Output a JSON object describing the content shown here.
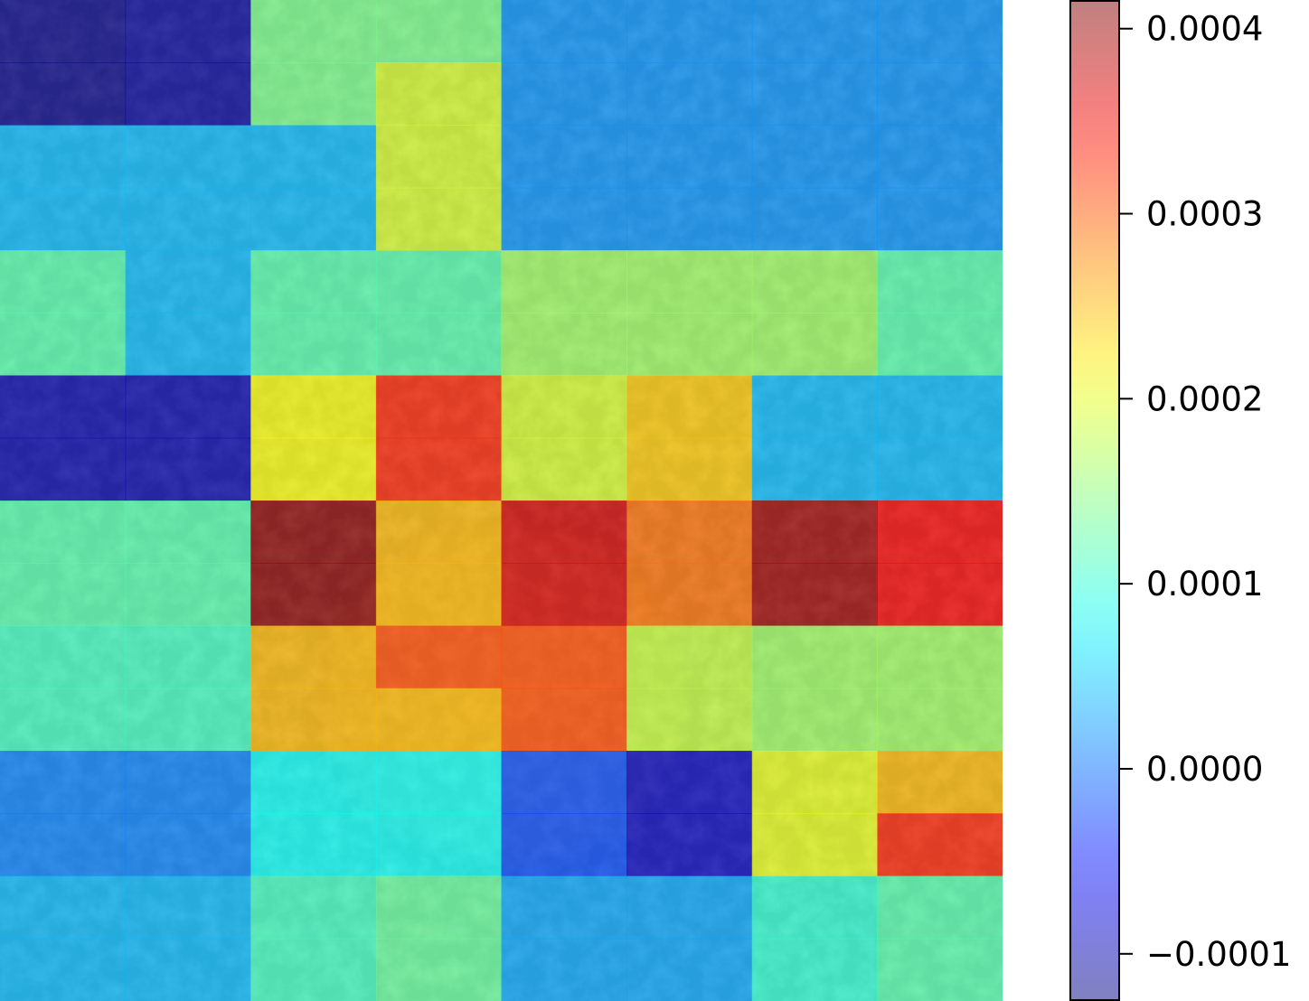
{
  "chart_data": {
    "type": "heatmap",
    "title": "",
    "xlabel": "",
    "ylabel": "",
    "grid": false,
    "rows": 8,
    "cols": 8,
    "background": "photograph of a textured surface, partially visible beneath the heat map",
    "cells": [
      [
        [
          -0.00012,
          -0.00011,
          0.00014,
          0.00014,
          2e-05,
          2e-05,
          2e-05,
          2e-05
        ],
        [
          -0.00012,
          -0.00011,
          0.00014,
          0.00019,
          2e-05,
          2e-05,
          2e-05,
          2e-05
        ]
      ],
      [
        [
          4e-05,
          4e-05,
          4e-05,
          0.00019,
          2e-05,
          2e-05,
          2e-05,
          2e-05
        ],
        [
          4e-05,
          4e-05,
          4e-05,
          0.00019,
          2e-05,
          2e-05,
          2e-05,
          2e-05
        ]
      ],
      [
        [
          0.00012,
          4e-05,
          0.00012,
          0.00012,
          0.00016,
          0.00016,
          0.00016,
          0.00012
        ],
        [
          0.00012,
          4e-05,
          0.00012,
          0.00012,
          0.00016,
          0.00016,
          0.00016,
          0.00012
        ]
      ],
      [
        [
          -0.0001,
          -0.0001,
          0.00021,
          0.00033,
          0.00019,
          0.00024,
          4e-05,
          4e-05
        ],
        [
          -0.0001,
          -0.0001,
          0.00021,
          0.00033,
          0.00019,
          0.00024,
          4e-05,
          4e-05
        ]
      ],
      [
        [
          0.00012,
          0.00012,
          0.00041,
          0.00025,
          0.00037,
          0.00029,
          0.0004,
          0.00035
        ],
        [
          0.00012,
          0.00012,
          0.00041,
          0.00025,
          0.00037,
          0.00029,
          0.0004,
          0.00035
        ]
      ],
      [
        [
          0.00011,
          0.00011,
          0.00025,
          0.00031,
          0.00031,
          0.00018,
          0.00016,
          0.00016
        ],
        [
          0.00011,
          0.00011,
          0.00025,
          0.00025,
          0.00031,
          0.00018,
          0.00016,
          0.00016
        ]
      ],
      [
        [
          1e-05,
          1e-05,
          8e-05,
          8e-05,
          -2e-05,
          -9e-05,
          0.0002,
          0.00025
        ],
        [
          1e-05,
          1e-05,
          8e-05,
          8e-05,
          -2e-05,
          -9e-05,
          0.0002,
          0.00033
        ]
      ],
      [
        [
          4e-05,
          4e-05,
          0.00011,
          0.00013,
          3e-05,
          3e-05,
          0.0001,
          0.00012
        ],
        [
          4e-05,
          4e-05,
          0.00011,
          0.00013,
          3e-05,
          3e-05,
          0.0001,
          0.00012
        ]
      ]
    ],
    "colorbar": {
      "vmin": -0.000125,
      "vmax": 0.000415,
      "colormap": "jet",
      "alpha": 0.5,
      "ticks": [
        {
          "value": 0.0004,
          "label": "0.0004"
        },
        {
          "value": 0.0003,
          "label": "0.0003"
        },
        {
          "value": 0.0002,
          "label": "0.0002"
        },
        {
          "value": 0.0001,
          "label": "0.0001"
        },
        {
          "value": 0.0,
          "label": "0.0000"
        },
        {
          "value": -0.0001,
          "label": "−0.0001"
        }
      ]
    }
  }
}
